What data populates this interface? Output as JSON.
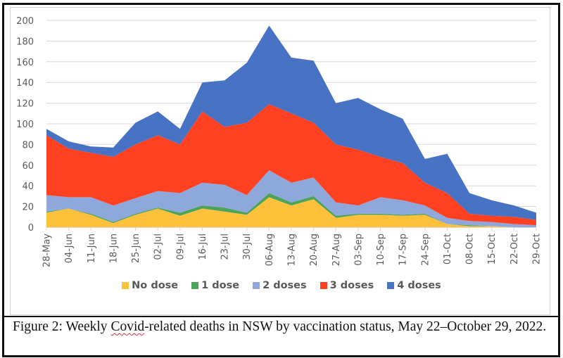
{
  "chart_data": {
    "type": "area",
    "stacked": true,
    "title": "",
    "xlabel": "",
    "ylabel": "",
    "ylim": [
      0,
      200
    ],
    "yticks": [
      0,
      20,
      40,
      60,
      80,
      100,
      120,
      140,
      160,
      180,
      200
    ],
    "grid": true,
    "legend_position": "bottom",
    "categories": [
      "28-May",
      "04-Jun",
      "11-Jun",
      "18-Jun",
      "25-Jun",
      "02-Jul",
      "09-Jul",
      "16-Jul",
      "23-Jul",
      "30-Jul",
      "06-Aug",
      "13-Aug",
      "20-Aug",
      "27-Aug",
      "03-Sep",
      "10-Sep",
      "17-Sep",
      "24-Sep",
      "01-Oct",
      "08-Oct",
      "15-Oct",
      "22-Oct",
      "29-Oct"
    ],
    "series": [
      {
        "name": "No dose",
        "color": "#FFC13B",
        "values": [
          14,
          18,
          12,
          4,
          12,
          18,
          11,
          18,
          15,
          12,
          29,
          21,
          27,
          9,
          12,
          12,
          11,
          12,
          3,
          1,
          1,
          0,
          0
        ]
      },
      {
        "name": "1 dose",
        "color": "#4CA35A",
        "values": [
          1,
          0,
          1,
          1,
          1,
          1,
          3,
          3,
          4,
          2,
          4,
          3,
          3,
          2,
          1,
          1,
          1,
          1,
          0,
          1,
          0,
          0,
          0
        ]
      },
      {
        "name": "2 doses",
        "color": "#8FA8DC",
        "values": [
          16,
          11,
          16,
          16,
          15,
          16,
          19,
          22,
          22,
          17,
          22,
          19,
          18,
          13,
          8,
          16,
          14,
          8,
          6,
          4,
          4,
          3,
          2
        ]
      },
      {
        "name": "3 doses",
        "color": "#FF4122",
        "values": [
          58,
          47,
          43,
          47,
          52,
          54,
          47,
          69,
          56,
          70,
          64,
          67,
          53,
          56,
          54,
          39,
          36,
          22,
          24,
          7,
          6,
          7,
          5
        ]
      },
      {
        "name": "4 doses",
        "color": "#4872C4",
        "values": [
          6,
          7,
          6,
          9,
          21,
          23,
          15,
          28,
          45,
          58,
          76,
          54,
          60,
          40,
          50,
          46,
          43,
          23,
          38,
          20,
          15,
          11,
          7
        ]
      }
    ]
  },
  "caption": {
    "prefix": "Figure 2: Weekly ",
    "flagged_word": "Covid",
    "suffix": "-related deaths in NSW by vaccination status, May 22–October 29, 2022."
  }
}
